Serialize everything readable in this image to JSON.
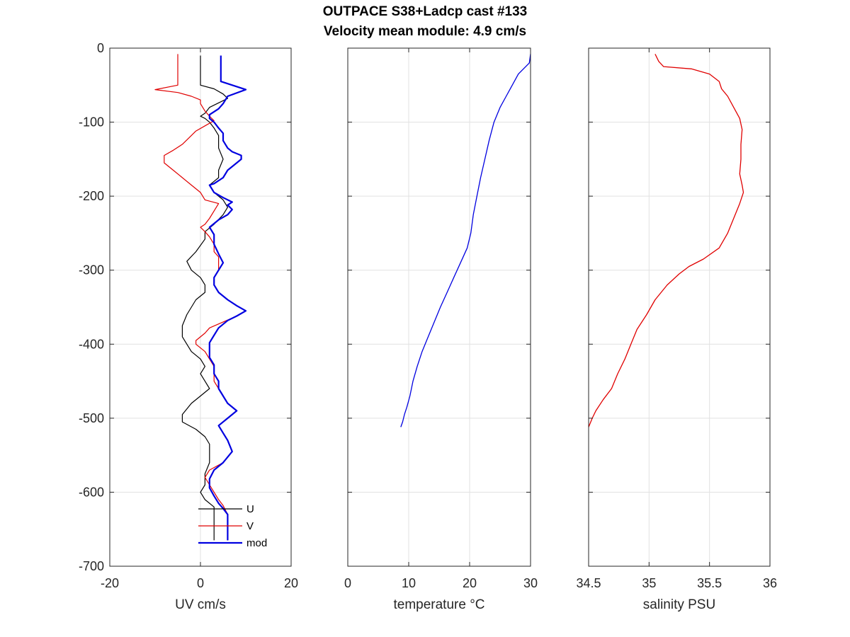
{
  "figure": {
    "title_line1": "OUTPACE S38+Ladcp cast #133",
    "title_line2": "Velocity mean module:  4.9 cm/s"
  },
  "chart_data": [
    {
      "type": "line",
      "xlabel": "UV cm/s",
      "ylabel": "",
      "xlim": [
        -20,
        20
      ],
      "ylim": [
        -700,
        0
      ],
      "xticks": [
        -20,
        0,
        20
      ],
      "yticks": [
        0,
        -100,
        -200,
        -300,
        -400,
        -500,
        -600,
        -700
      ],
      "grid": true,
      "legend": {
        "placement": "bottom-right",
        "entries": [
          "U",
          "V",
          "mod"
        ]
      },
      "series": [
        {
          "name": "U",
          "color": "#000000",
          "width": 1.2,
          "points": [
            [
              0,
              -10
            ],
            [
              0,
              -50
            ],
            [
              3,
              -55
            ],
            [
              5,
              -62
            ],
            [
              6,
              -68
            ],
            [
              2,
              -80
            ],
            [
              1,
              -88
            ],
            [
              0,
              -92
            ],
            [
              1,
              -95
            ],
            [
              2,
              -100
            ],
            [
              3,
              -108
            ],
            [
              4,
              -118
            ],
            [
              4,
              -135
            ],
            [
              5,
              -150
            ],
            [
              4,
              -165
            ],
            [
              4,
              -175
            ],
            [
              2,
              -185
            ],
            [
              3,
              -195
            ],
            [
              5,
              -205
            ],
            [
              6,
              -215
            ],
            [
              5,
              -225
            ],
            [
              3,
              -238
            ],
            [
              1,
              -248
            ],
            [
              1,
              -258
            ],
            [
              -1,
              -275
            ],
            [
              -3,
              -288
            ],
            [
              -2,
              -300
            ],
            [
              0,
              -310
            ],
            [
              1,
              -320
            ],
            [
              1,
              -330
            ],
            [
              -1,
              -340
            ],
            [
              -2,
              -350
            ],
            [
              -3,
              -360
            ],
            [
              -4,
              -375
            ],
            [
              -4,
              -390
            ],
            [
              -3,
              -400
            ],
            [
              -2,
              -410
            ],
            [
              0,
              -420
            ],
            [
              1,
              -430
            ],
            [
              0,
              -440
            ],
            [
              1,
              -450
            ],
            [
              2,
              -460
            ],
            [
              0,
              -470
            ],
            [
              -2,
              -480
            ],
            [
              -4,
              -495
            ],
            [
              -4,
              -505
            ],
            [
              -1,
              -515
            ],
            [
              1,
              -525
            ],
            [
              2,
              -535
            ],
            [
              2,
              -545
            ],
            [
              2,
              -560
            ],
            [
              1,
              -575
            ],
            [
              1,
              -590
            ],
            [
              0,
              -600
            ],
            [
              1,
              -610
            ],
            [
              3,
              -620
            ],
            [
              3,
              -640
            ],
            [
              3,
              -665
            ]
          ]
        },
        {
          "name": "V",
          "color": "#e00000",
          "width": 1.2,
          "points": [
            [
              -5,
              -8
            ],
            [
              -5,
              -50
            ],
            [
              -10,
              -56
            ],
            [
              -5,
              -60
            ],
            [
              -2,
              -65
            ],
            [
              0,
              -70
            ],
            [
              0,
              -75
            ],
            [
              1,
              -85
            ],
            [
              2,
              -92
            ],
            [
              3,
              -98
            ],
            [
              1,
              -105
            ],
            [
              -1,
              -112
            ],
            [
              -2,
              -118
            ],
            [
              -4,
              -130
            ],
            [
              -6,
              -138
            ],
            [
              -8,
              -145
            ],
            [
              -8,
              -155
            ],
            [
              -6,
              -165
            ],
            [
              -4,
              -175
            ],
            [
              -2,
              -185
            ],
            [
              0,
              -195
            ],
            [
              1,
              -205
            ],
            [
              4,
              -210
            ],
            [
              3,
              -220
            ],
            [
              2,
              -230
            ],
            [
              1,
              -238
            ],
            [
              0,
              -242
            ],
            [
              1,
              -248
            ],
            [
              2,
              -255
            ],
            [
              3,
              -265
            ],
            [
              3,
              -275
            ],
            [
              4,
              -282
            ],
            [
              4,
              -290
            ],
            [
              4,
              -300
            ],
            [
              3,
              -310
            ],
            [
              3,
              -320
            ],
            [
              4,
              -330
            ],
            [
              6,
              -340
            ],
            [
              8,
              -348
            ],
            [
              10,
              -355
            ],
            [
              8,
              -362
            ],
            [
              5,
              -370
            ],
            [
              2,
              -378
            ],
            [
              1,
              -385
            ],
            [
              -1,
              -395
            ],
            [
              -1,
              -400
            ],
            [
              1,
              -410
            ],
            [
              2,
              -420
            ],
            [
              3,
              -430
            ],
            [
              3,
              -440
            ],
            [
              3,
              -450
            ],
            [
              4,
              -460
            ],
            [
              5,
              -470
            ],
            [
              6,
              -480
            ],
            [
              8,
              -490
            ],
            [
              6,
              -500
            ],
            [
              4,
              -510
            ],
            [
              5,
              -520
            ],
            [
              6,
              -530
            ],
            [
              7,
              -545
            ],
            [
              5,
              -560
            ],
            [
              2,
              -570
            ],
            [
              1,
              -580
            ],
            [
              2,
              -590
            ],
            [
              3,
              -600
            ],
            [
              4,
              -610
            ],
            [
              5,
              -618
            ],
            [
              6,
              -630
            ],
            [
              6,
              -665
            ]
          ]
        },
        {
          "name": "mod",
          "color": "#0000e0",
          "width": 2.2,
          "points": [
            [
              4.5,
              -10
            ],
            [
              4.5,
              -45
            ],
            [
              10,
              -56
            ],
            [
              6,
              -65
            ],
            [
              5,
              -75
            ],
            [
              4,
              -82
            ],
            [
              2,
              -90
            ],
            [
              2,
              -95
            ],
            [
              3,
              -100
            ],
            [
              4,
              -108
            ],
            [
              5,
              -115
            ],
            [
              5,
              -125
            ],
            [
              6,
              -135
            ],
            [
              7,
              -140
            ],
            [
              9,
              -145
            ],
            [
              9,
              -150
            ],
            [
              8,
              -155
            ],
            [
              6,
              -165
            ],
            [
              5,
              -175
            ],
            [
              3,
              -183
            ],
            [
              2,
              -185
            ],
            [
              3,
              -195
            ],
            [
              5,
              -202
            ],
            [
              7,
              -208
            ],
            [
              6,
              -212
            ],
            [
              7,
              -218
            ],
            [
              6,
              -225
            ],
            [
              4,
              -232
            ],
            [
              2,
              -242
            ],
            [
              3,
              -252
            ],
            [
              3,
              -265
            ],
            [
              4,
              -278
            ],
            [
              5,
              -290
            ],
            [
              4,
              -300
            ],
            [
              3,
              -310
            ],
            [
              3,
              -320
            ],
            [
              4,
              -330
            ],
            [
              6,
              -340
            ],
            [
              8,
              -348
            ],
            [
              10,
              -355
            ],
            [
              8,
              -362
            ],
            [
              6,
              -368
            ],
            [
              4,
              -378
            ],
            [
              3,
              -388
            ],
            [
              2,
              -398
            ],
            [
              2,
              -408
            ],
            [
              2,
              -418
            ],
            [
              3,
              -428
            ],
            [
              3,
              -440
            ],
            [
              4,
              -450
            ],
            [
              4,
              -460
            ],
            [
              5,
              -470
            ],
            [
              6,
              -480
            ],
            [
              8,
              -490
            ],
            [
              6,
              -500
            ],
            [
              4,
              -510
            ],
            [
              5,
              -520
            ],
            [
              6,
              -530
            ],
            [
              7,
              -545
            ],
            [
              5,
              -560
            ],
            [
              3,
              -570
            ],
            [
              2,
              -582
            ],
            [
              2,
              -594
            ],
            [
              3,
              -605
            ],
            [
              4,
              -615
            ],
            [
              5,
              -622
            ],
            [
              6,
              -630
            ],
            [
              6,
              -665
            ]
          ]
        }
      ]
    },
    {
      "type": "line",
      "xlabel": "temperature °C",
      "ylabel": "",
      "xlim": [
        0,
        30
      ],
      "ylim": [
        -700,
        0
      ],
      "xticks": [
        0,
        10,
        20,
        30
      ],
      "yticks": [
        0,
        -100,
        -200,
        -300,
        -400,
        -500,
        -600,
        -700
      ],
      "grid": true,
      "series": [
        {
          "color": "#0000e0",
          "width": 1.3,
          "points": [
            [
              30,
              -8
            ],
            [
              29.8,
              -20
            ],
            [
              28,
              -35
            ],
            [
              27,
              -50
            ],
            [
              26,
              -65
            ],
            [
              25,
              -80
            ],
            [
              24,
              -100
            ],
            [
              23.2,
              -125
            ],
            [
              22.5,
              -150
            ],
            [
              21.8,
              -175
            ],
            [
              21.2,
              -200
            ],
            [
              20.6,
              -225
            ],
            [
              20.2,
              -250
            ],
            [
              19.6,
              -270
            ],
            [
              18.5,
              -290
            ],
            [
              17.4,
              -310
            ],
            [
              16.3,
              -330
            ],
            [
              15.2,
              -350
            ],
            [
              14.2,
              -370
            ],
            [
              13.2,
              -390
            ],
            [
              12.2,
              -410
            ],
            [
              11.4,
              -430
            ],
            [
              10.7,
              -450
            ],
            [
              10.2,
              -470
            ],
            [
              9.7,
              -485
            ],
            [
              9.3,
              -495
            ],
            [
              9,
              -505
            ],
            [
              8.7,
              -512
            ]
          ]
        }
      ]
    },
    {
      "type": "line",
      "xlabel": "salinity PSU",
      "ylabel": "",
      "xlim": [
        34.5,
        36
      ],
      "ylim": [
        -700,
        0
      ],
      "xticks": [
        34.5,
        35,
        35.5,
        36
      ],
      "yticks": [
        0,
        -100,
        -200,
        -300,
        -400,
        -500,
        -600,
        -700
      ],
      "grid": true,
      "series": [
        {
          "color": "#e00000",
          "width": 1.3,
          "points": [
            [
              35.05,
              -8
            ],
            [
              35.08,
              -18
            ],
            [
              35.12,
              -25
            ],
            [
              35.35,
              -28
            ],
            [
              35.5,
              -35
            ],
            [
              35.58,
              -45
            ],
            [
              35.6,
              -55
            ],
            [
              35.65,
              -65
            ],
            [
              35.7,
              -80
            ],
            [
              35.75,
              -95
            ],
            [
              35.77,
              -110
            ],
            [
              35.76,
              -130
            ],
            [
              35.76,
              -150
            ],
            [
              35.75,
              -170
            ],
            [
              35.77,
              -185
            ],
            [
              35.78,
              -195
            ],
            [
              35.75,
              -210
            ],
            [
              35.7,
              -230
            ],
            [
              35.65,
              -250
            ],
            [
              35.58,
              -270
            ],
            [
              35.45,
              -285
            ],
            [
              35.33,
              -295
            ],
            [
              35.25,
              -305
            ],
            [
              35.15,
              -320
            ],
            [
              35.05,
              -340
            ],
            [
              34.98,
              -360
            ],
            [
              34.9,
              -380
            ],
            [
              34.85,
              -400
            ],
            [
              34.8,
              -420
            ],
            [
              34.74,
              -440
            ],
            [
              34.69,
              -460
            ],
            [
              34.62,
              -475
            ],
            [
              34.56,
              -490
            ],
            [
              34.53,
              -500
            ],
            [
              34.5,
              -512
            ]
          ]
        }
      ]
    }
  ]
}
